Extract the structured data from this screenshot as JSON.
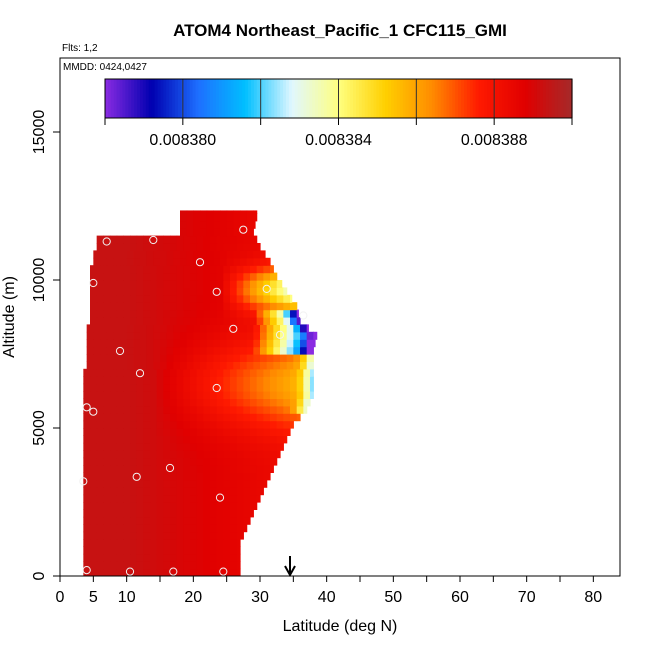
{
  "chart_data": {
    "type": "heatmap",
    "title": "ATOM4 Northeast_Pacific_1 CFC115_GMI",
    "flights_label": "Flts: 1,2",
    "dates_label": "MMDD: 0424,0427",
    "xlabel": "Latitude (deg N)",
    "ylabel": "Altitude (m)",
    "xlim": [
      0,
      84
    ],
    "ylim": [
      0,
      17500
    ],
    "x_ticks": [
      0,
      5,
      10,
      20,
      30,
      40,
      50,
      60,
      70,
      80
    ],
    "y_ticks": [
      0,
      5000,
      10000,
      15000
    ],
    "y_tick_labels": [
      "0",
      "5000",
      "10000",
      "15000"
    ],
    "colorbar": {
      "range": [
        0.008378,
        0.00839
      ],
      "tick_values": [
        0.00838,
        0.008384,
        0.008388
      ],
      "tick_labels": [
        "0.008380",
        "0.008384",
        "0.008388"
      ],
      "colors": [
        "#8a2be2",
        "#0000b0",
        "#1e6fff",
        "#00bfff",
        "#e0f7ff",
        "#ffff80",
        "#ffd000",
        "#ff8c00",
        "#ff1a00",
        "#e00000",
        "#a52a2a"
      ]
    },
    "arrow_marker_lat": 34.5,
    "profile": [
      {
        "alt": 0,
        "lat_min": 3.5,
        "lat_max": 27
      },
      {
        "alt": 1000,
        "lat_min": 3.5,
        "lat_max": 27
      },
      {
        "alt": 1500,
        "lat_min": 3.5,
        "lat_max": 28
      },
      {
        "alt": 2000,
        "lat_min": 3.5,
        "lat_max": 29
      },
      {
        "alt": 2500,
        "lat_min": 3.5,
        "lat_max": 30
      },
      {
        "alt": 3000,
        "lat_min": 3.5,
        "lat_max": 31
      },
      {
        "alt": 3500,
        "lat_min": 3.5,
        "lat_max": 32
      },
      {
        "alt": 4000,
        "lat_min": 3.5,
        "lat_max": 33
      },
      {
        "alt": 4500,
        "lat_min": 3.5,
        "lat_max": 34
      },
      {
        "alt": 5000,
        "lat_min": 3.5,
        "lat_max": 35
      },
      {
        "alt": 5500,
        "lat_min": 3.5,
        "lat_max": 37
      },
      {
        "alt": 6000,
        "lat_min": 3.5,
        "lat_max": 38
      },
      {
        "alt": 6500,
        "lat_min": 3.5,
        "lat_max": 38
      },
      {
        "alt": 7000,
        "lat_min": 4,
        "lat_max": 38
      },
      {
        "alt": 7500,
        "lat_min": 4,
        "lat_max": 38
      },
      {
        "alt": 8000,
        "lat_min": 4,
        "lat_max": 38.5
      },
      {
        "alt": 8500,
        "lat_min": 4.5,
        "lat_max": 36
      },
      {
        "alt": 9000,
        "lat_min": 4.5,
        "lat_max": 35.5
      },
      {
        "alt": 9500,
        "lat_min": 4.5,
        "lat_max": 34
      },
      {
        "alt": 10000,
        "lat_min": 4.5,
        "lat_max": 32.5
      },
      {
        "alt": 10500,
        "lat_min": 5,
        "lat_max": 31.5
      },
      {
        "alt": 11000,
        "lat_min": 5.5,
        "lat_max": 30
      },
      {
        "alt": 11500,
        "lat_min": 18,
        "lat_max": 29
      },
      {
        "alt": 12000,
        "lat_min": 18,
        "lat_max": 29.5
      }
    ],
    "sample_points": [
      {
        "lat": 4,
        "alt": 200
      },
      {
        "lat": 10.5,
        "alt": 150
      },
      {
        "lat": 17,
        "alt": 150
      },
      {
        "lat": 24.5,
        "alt": 150
      },
      {
        "lat": 3.5,
        "alt": 3200
      },
      {
        "lat": 11.5,
        "alt": 3350
      },
      {
        "lat": 16.5,
        "alt": 3650
      },
      {
        "lat": 24,
        "alt": 2650
      },
      {
        "lat": 4,
        "alt": 5700
      },
      {
        "lat": 5,
        "alt": 5550
      },
      {
        "lat": 12,
        "alt": 6850
      },
      {
        "lat": 23.5,
        "alt": 6350
      },
      {
        "lat": 9,
        "alt": 7600
      },
      {
        "lat": 26,
        "alt": 8350
      },
      {
        "lat": 33,
        "alt": 8150
      },
      {
        "lat": 36.5,
        "alt": 8800
      },
      {
        "lat": 5,
        "alt": 9900
      },
      {
        "lat": 23.5,
        "alt": 9600
      },
      {
        "lat": 31,
        "alt": 9700
      },
      {
        "lat": 21,
        "alt": 10600
      },
      {
        "lat": 7,
        "alt": 11300
      },
      {
        "lat": 14,
        "alt": 11350
      },
      {
        "lat": 27.5,
        "alt": 11700
      }
    ]
  }
}
